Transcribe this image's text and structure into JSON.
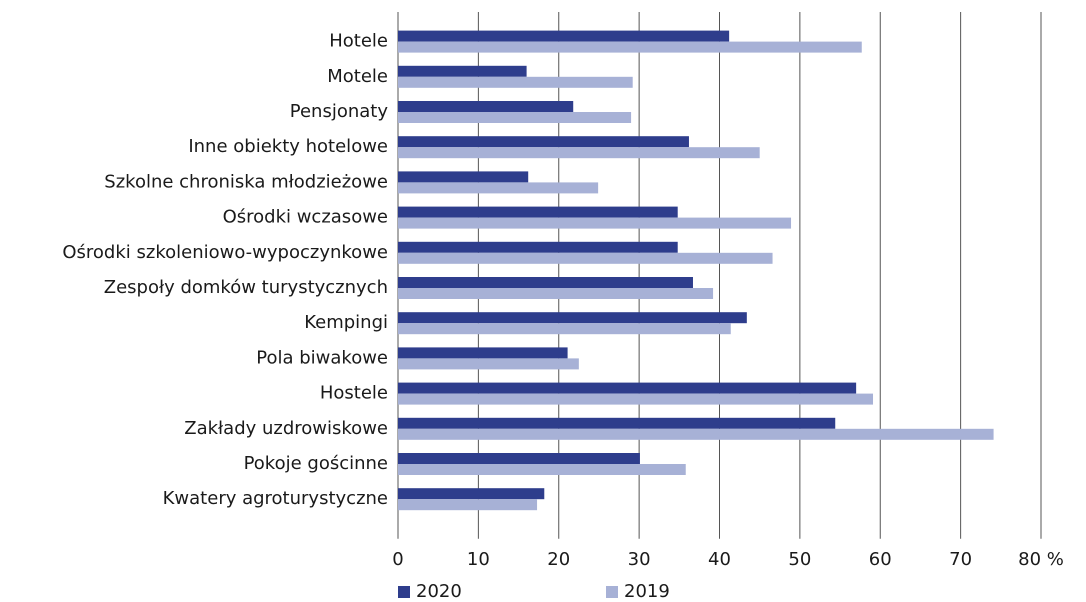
{
  "chart_data": {
    "type": "bar",
    "orientation": "horizontal",
    "categories": [
      "Hotele",
      "Motele",
      "Pensjonaty",
      "Inne obiekty hotelowe",
      "Szkolne chroniska młodzieżowe",
      "Ośrodki wczasowe",
      "Ośrodki szkoleniowo-wypoczynkowe",
      "Zespoły domków turystycznych",
      "Kempingi",
      "Pola biwakowe",
      "Hostele",
      "Zakłady uzdrowiskowe",
      "Pokoje gościnne",
      "Kwatery agroturystyczne"
    ],
    "series": [
      {
        "name": "2020",
        "color": "#2e3d8c",
        "values": [
          41.2,
          16.0,
          21.8,
          36.2,
          16.2,
          34.8,
          34.8,
          36.7,
          43.4,
          21.1,
          57.0,
          54.4,
          30.1,
          18.2
        ]
      },
      {
        "name": "2019",
        "color": "#a7b1d6",
        "values": [
          57.7,
          29.2,
          29.0,
          45.0,
          24.9,
          48.9,
          46.6,
          39.2,
          41.4,
          22.5,
          59.1,
          74.1,
          35.8,
          17.3
        ]
      }
    ],
    "xlim": [
      0,
      80
    ],
    "xticks": [
      0,
      10,
      20,
      30,
      40,
      50,
      60,
      70,
      {
        "value": 80,
        "label": "80 %"
      }
    ],
    "grid": true,
    "legend": "bottom-left"
  }
}
